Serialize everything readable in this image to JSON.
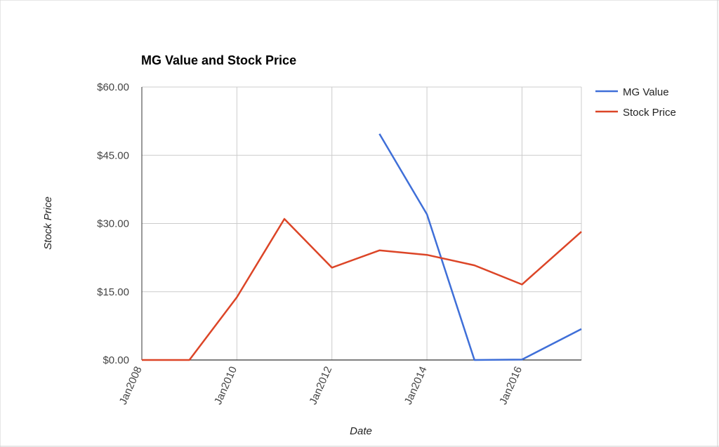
{
  "chart_data": {
    "type": "line",
    "title": "MG Value and Stock Price",
    "xlabel": "Date",
    "ylabel": "Stock Price",
    "ylim": [
      0,
      60
    ],
    "xlim": [
      "2008-01",
      "2017-04"
    ],
    "y_ticks": [
      "$0.00",
      "$15.00",
      "$30.00",
      "$45.00",
      "$60.00"
    ],
    "y_tick_values": [
      0,
      15,
      30,
      45,
      60
    ],
    "x_ticks": [
      "Jan2008",
      "Jan2010",
      "Jan2012",
      "Jan2014",
      "Jan2016"
    ],
    "x_tick_values": [
      "2008-01",
      "2010-01",
      "2012-01",
      "2014-01",
      "2016-01"
    ],
    "grid": true,
    "legend_position": "top-right",
    "series": [
      {
        "name": "MG Value",
        "color": "#3f6fd8",
        "x": [
          "2013-01",
          "2014-01",
          "2015-01",
          "2016-01",
          "2017-04"
        ],
        "values": [
          49.7,
          32.0,
          0.0,
          0.1,
          6.8
        ]
      },
      {
        "name": "Stock Price",
        "color": "#dc4527",
        "x": [
          "2008-01",
          "2009-01",
          "2010-01",
          "2011-01",
          "2012-01",
          "2013-01",
          "2014-01",
          "2015-01",
          "2016-01",
          "2017-04"
        ],
        "values": [
          0.0,
          0.0,
          13.8,
          31.0,
          20.3,
          24.1,
          23.1,
          20.8,
          16.6,
          28.2
        ]
      }
    ]
  }
}
